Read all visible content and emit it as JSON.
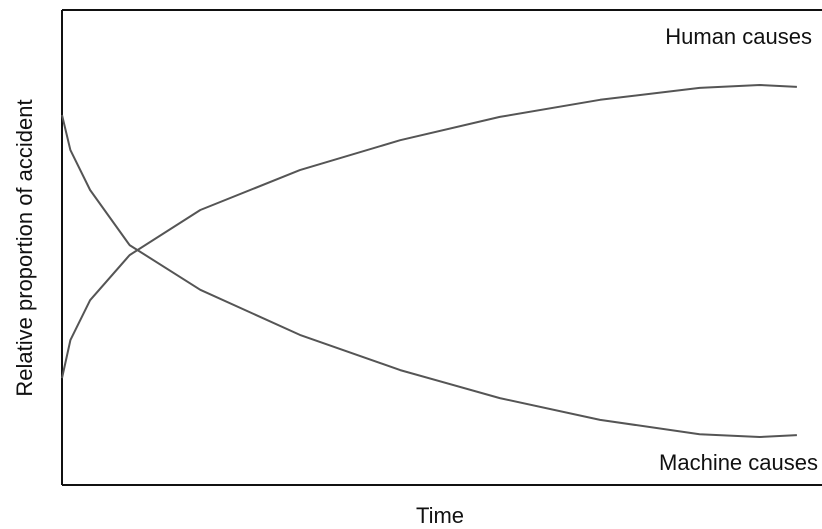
{
  "chart_data": {
    "type": "line",
    "x_label": "Time",
    "y_label": "Relative proportion of accident",
    "xlim": [
      0,
      100
    ],
    "ylim": [
      0,
      100
    ],
    "series": [
      {
        "name": "Human causes",
        "color": "#555555",
        "x": [
          0,
          1.1,
          3.7,
          8.9,
          18.2,
          31.3,
          44.5,
          57.6,
          70.8,
          83.9,
          91.8,
          96.7
        ],
        "values": [
          22.5,
          30.5,
          38.9,
          48.4,
          57.9,
          66.3,
          72.6,
          77.5,
          81.1,
          83.6,
          84.2,
          83.8
        ]
      },
      {
        "name": "Machine causes",
        "color": "#555555",
        "x": [
          0,
          1.1,
          3.7,
          8.9,
          18.2,
          31.3,
          44.5,
          57.6,
          70.8,
          83.9,
          91.8,
          96.7
        ],
        "values": [
          77.9,
          70.5,
          62.1,
          50.5,
          41.1,
          31.6,
          24.2,
          18.3,
          13.7,
          10.7,
          10.1,
          10.5
        ]
      }
    ]
  }
}
